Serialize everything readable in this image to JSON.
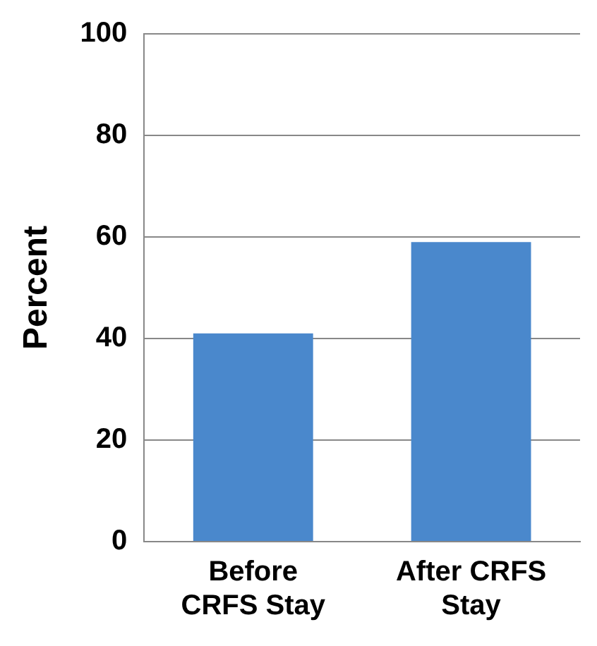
{
  "chart_data": {
    "type": "bar",
    "ylabel": "Percent",
    "categories": [
      "Before CRFS Stay",
      "After CRFS Stay"
    ],
    "values": [
      41,
      59
    ],
    "color": "#4a88cc",
    "ylim": [
      0,
      100
    ],
    "yticks": [
      0,
      20,
      40,
      60,
      80,
      100
    ],
    "grid": "y"
  }
}
